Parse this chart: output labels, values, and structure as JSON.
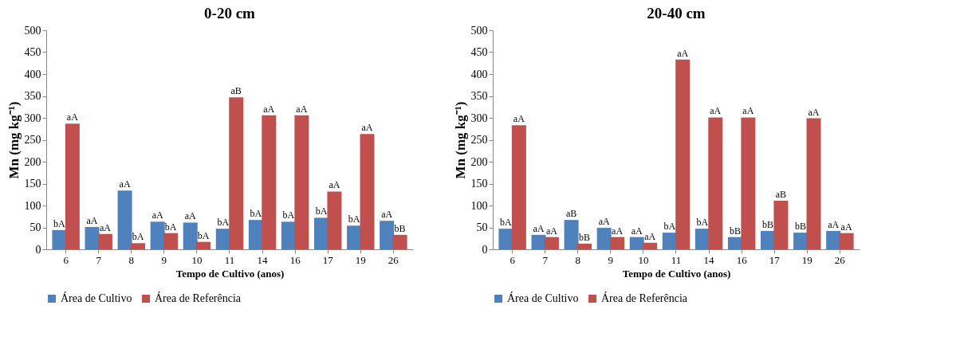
{
  "chart_data": [
    {
      "type": "bar",
      "title": "0-20 cm",
      "xlabel": "Tempo de Cultivo (anos)",
      "ylabel": "Mn (mg kg⁻¹)",
      "categories": [
        "6",
        "7",
        "8",
        "9",
        "10",
        "11",
        "14",
        "16",
        "17",
        "19",
        "26"
      ],
      "series": [
        {
          "name": "Área de Cultivo",
          "color": "#4f81bd",
          "values": [
            44,
            51,
            134,
            63,
            61,
            47,
            67,
            63,
            72,
            54,
            65
          ],
          "value_labels": [
            "bA",
            "aA",
            "aA",
            "aA",
            "aA",
            "bA",
            "bA",
            "bA",
            "bA",
            "bA",
            "aA"
          ]
        },
        {
          "name": "Área de Referência",
          "color": "#c0504d",
          "values": [
            287,
            35,
            14,
            37,
            17,
            347,
            306,
            306,
            132,
            263,
            33
          ],
          "value_labels": [
            "aA",
            "aA",
            "bA",
            "bA",
            "bA",
            "aB",
            "aA",
            "aA",
            "aA",
            "aA",
            "bB"
          ]
        }
      ],
      "ylim": [
        0,
        500
      ],
      "yticks": [
        0,
        50,
        100,
        150,
        200,
        250,
        300,
        350,
        400,
        450,
        500
      ],
      "grid": false,
      "legend": "bottom"
    },
    {
      "type": "bar",
      "title": "20-40 cm",
      "xlabel": "Tempo de Cultivo (anos)",
      "ylabel": "Mn (mg kg⁻¹)",
      "categories": [
        "6",
        "7",
        "8",
        "9",
        "10",
        "11",
        "14",
        "16",
        "17",
        "19",
        "26"
      ],
      "series": [
        {
          "name": "Área de Cultivo",
          "color": "#4f81bd",
          "values": [
            47,
            33,
            67,
            49,
            28,
            38,
            47,
            28,
            42,
            38,
            42
          ],
          "value_labels": [
            "bA",
            "aA",
            "aB",
            "aA",
            "aA",
            "bA",
            "bA",
            "bB",
            "bB",
            "bB",
            "aA"
          ]
        },
        {
          "name": "Área de Referência",
          "color": "#c0504d",
          "values": [
            283,
            28,
            13,
            28,
            15,
            433,
            301,
            301,
            111,
            299,
            37
          ],
          "value_labels": [
            "aA",
            "aA",
            "bB",
            "aA",
            "aA",
            "aA",
            "aA",
            "aA",
            "aB",
            "aA",
            "aA"
          ]
        }
      ],
      "ylim": [
        0,
        500
      ],
      "yticks": [
        0,
        50,
        100,
        150,
        200,
        250,
        300,
        350,
        400,
        450,
        500
      ],
      "grid": false,
      "legend": "bottom"
    }
  ]
}
